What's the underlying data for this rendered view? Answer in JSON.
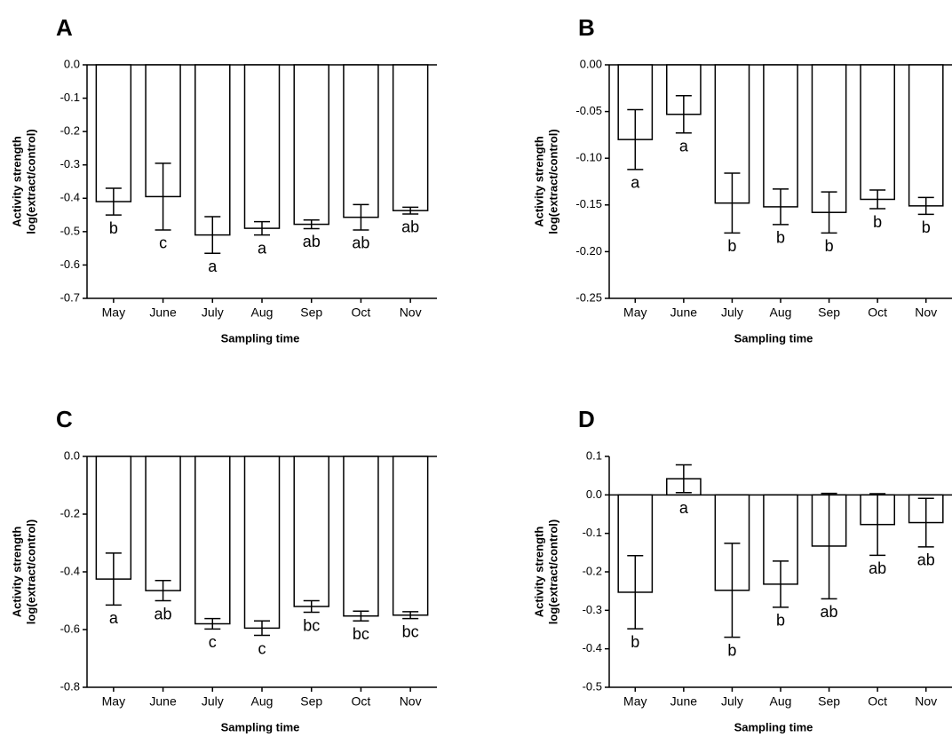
{
  "chart_data": [
    {
      "type": "bar",
      "panel": "A",
      "categories": [
        "May",
        "June",
        "July",
        "Aug",
        "Sep",
        "Oct",
        "Nov"
      ],
      "values": [
        -0.41,
        -0.395,
        -0.51,
        -0.49,
        -0.478,
        -0.457,
        -0.437
      ],
      "errors": [
        0.04,
        0.1,
        0.055,
        0.02,
        0.013,
        0.038,
        0.01
      ],
      "letters": [
        "b",
        "c",
        "a",
        "a",
        "ab",
        "ab",
        "ab"
      ],
      "xlabel": "Sampling time",
      "ylabel": [
        "Activity strength",
        "log(extract/control)"
      ],
      "ylim": [
        -0.7,
        0.0
      ],
      "yticks": [
        0.0,
        -0.1,
        -0.2,
        -0.3,
        -0.4,
        -0.5,
        -0.6,
        -0.7
      ],
      "ytick_labels": [
        "0.0",
        "-0.1",
        "-0.2",
        "-0.3",
        "-0.4",
        "-0.5",
        "-0.6",
        "-0.7"
      ]
    },
    {
      "type": "bar",
      "panel": "B",
      "categories": [
        "May",
        "June",
        "July",
        "Aug",
        "Sep",
        "Oct",
        "Nov"
      ],
      "values": [
        -0.08,
        -0.053,
        -0.148,
        -0.152,
        -0.158,
        -0.144,
        -0.151
      ],
      "errors": [
        0.032,
        0.02,
        0.032,
        0.019,
        0.022,
        0.01,
        0.009
      ],
      "letters": [
        "a",
        "a",
        "b",
        "b",
        "b",
        "b",
        "b"
      ],
      "xlabel": "Sampling time",
      "ylabel": [
        "Activity strength",
        "log(extract/control)"
      ],
      "ylim": [
        -0.25,
        0.0
      ],
      "yticks": [
        0.0,
        -0.05,
        -0.1,
        -0.15,
        -0.2,
        -0.25
      ],
      "ytick_labels": [
        "0.00",
        "-0.05",
        "-0.10",
        "-0.15",
        "-0.20",
        "-0.25"
      ]
    },
    {
      "type": "bar",
      "panel": "C",
      "categories": [
        "May",
        "June",
        "July",
        "Aug",
        "Sep",
        "Oct",
        "Nov"
      ],
      "values": [
        -0.425,
        -0.465,
        -0.58,
        -0.595,
        -0.52,
        -0.553,
        -0.55
      ],
      "errors": [
        0.09,
        0.035,
        0.018,
        0.025,
        0.02,
        0.017,
        0.012
      ],
      "letters": [
        "a",
        "ab",
        "c",
        "c",
        "bc",
        "bc",
        "bc"
      ],
      "xlabel": "Sampling time",
      "ylabel": [
        "Activity strength",
        "log(extract/control)"
      ],
      "ylim": [
        -0.8,
        0.0
      ],
      "yticks": [
        0.0,
        -0.2,
        -0.4,
        -0.6,
        -0.8
      ],
      "ytick_labels": [
        "0.0",
        "-0.2",
        "-0.4",
        "-0.6",
        "-0.8"
      ]
    },
    {
      "type": "bar",
      "panel": "D",
      "categories": [
        "May",
        "June",
        "July",
        "Aug",
        "Sep",
        "Oct",
        "Nov"
      ],
      "values": [
        -0.253,
        0.042,
        -0.248,
        -0.232,
        -0.133,
        -0.077,
        -0.072
      ],
      "errors": [
        0.095,
        0.036,
        0.122,
        0.06,
        0.137,
        0.08,
        0.063
      ],
      "letters": [
        "b",
        "a",
        "b",
        "b",
        "ab",
        "ab",
        "ab"
      ],
      "xlabel": "Sampling time",
      "ylabel": [
        "Activity strength",
        "log(extract/control)"
      ],
      "ylim": [
        -0.5,
        0.1
      ],
      "yticks": [
        0.1,
        0.0,
        -0.1,
        -0.2,
        -0.3,
        -0.4,
        -0.5
      ],
      "ytick_labels": [
        "0.1",
        "0.0",
        "-0.1",
        "-0.2",
        "-0.3",
        "-0.4",
        "-0.5"
      ]
    }
  ]
}
